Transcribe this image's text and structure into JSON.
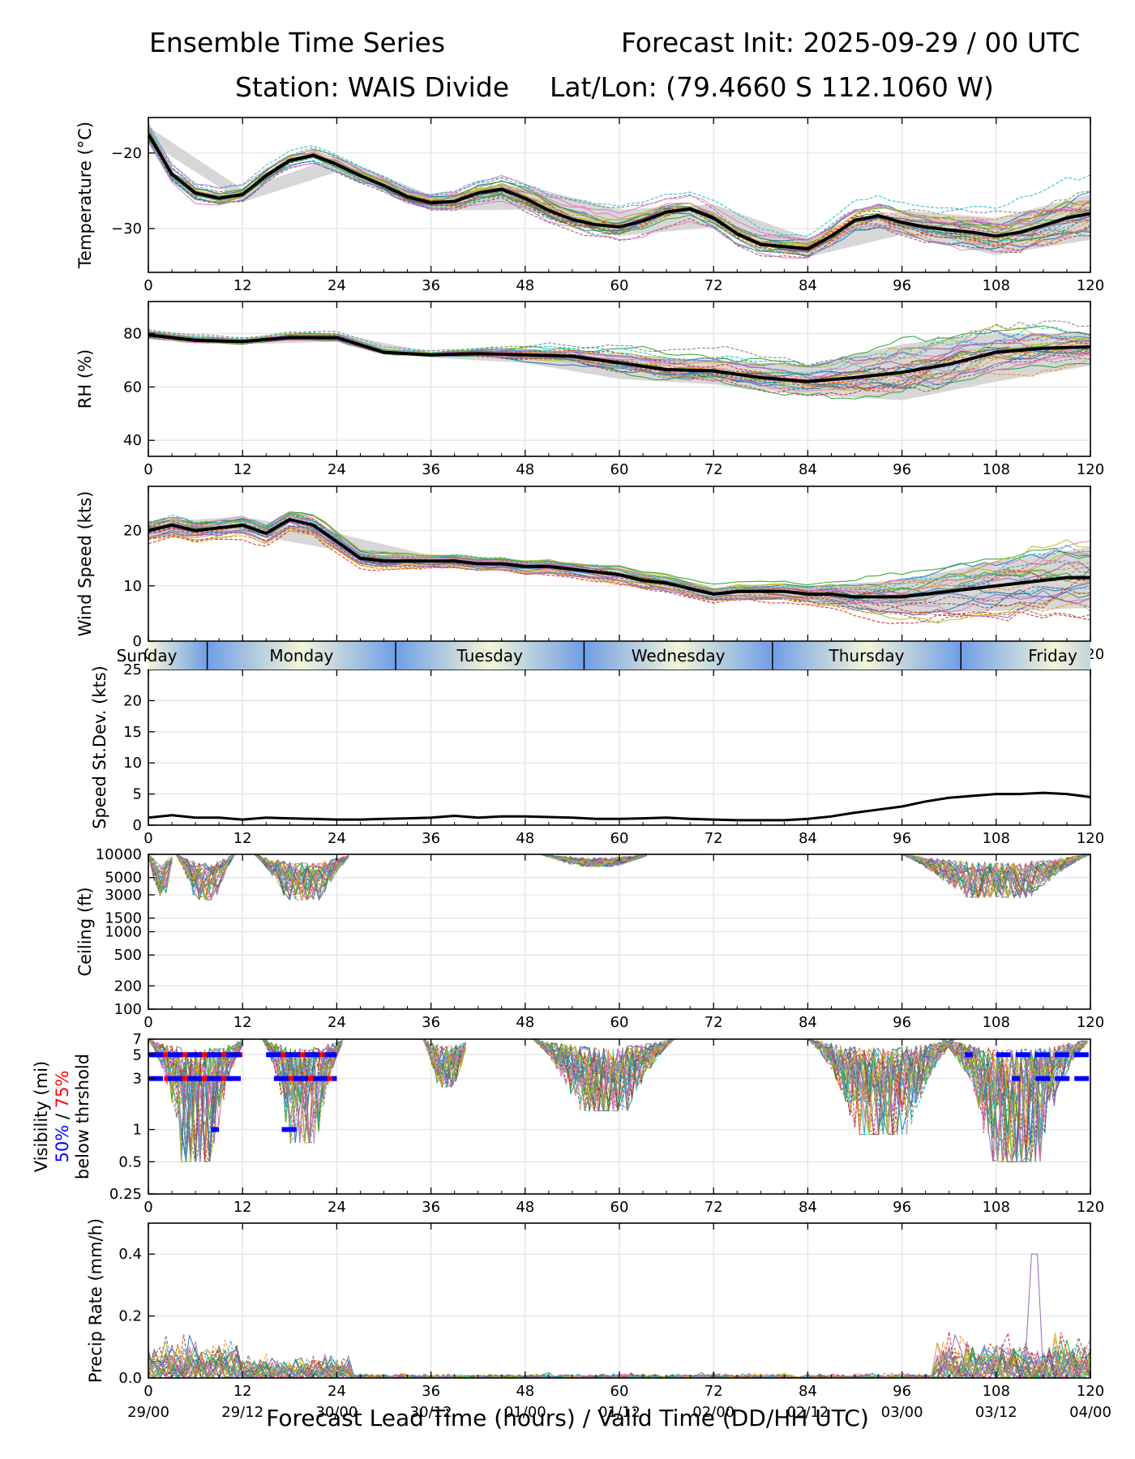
{
  "header": {
    "title_left": "Ensemble Time Series",
    "title_right": "Forecast Init: 2025-09-29 / 00 UTC",
    "subtitle_station": "Station: WAIS Divide",
    "subtitle_latlon": "Lat/Lon: (79.4660 S 112.1060 W)"
  },
  "x_axis_label": "Forecast Lead Time (hours) / Valid Time (DD/HH UTC)",
  "colors": {
    "mean": "#000000",
    "spread": "#d3d3d3",
    "pct50": "#0000ff",
    "pct75": "#ff0000",
    "members": [
      "#1f77b4",
      "#ff7f0e",
      "#2ca02c",
      "#d62728",
      "#9467bd",
      "#8c564b",
      "#e377c2",
      "#7f7f7f",
      "#bcbd22",
      "#17becf"
    ]
  },
  "chart_data": [
    {
      "id": "temperature",
      "type": "line",
      "ylabel": "Temperature (°C)",
      "xlim": [
        0,
        120
      ],
      "ylim": [
        -35.8,
        -15.3
      ],
      "yticks": [
        -20,
        -30
      ],
      "xticks": [
        0,
        12,
        24,
        36,
        48,
        60,
        72,
        84,
        96,
        108,
        120
      ],
      "series": [
        {
          "name": "ensemble mean",
          "x": [
            0,
            3,
            6,
            9,
            12,
            15,
            18,
            21,
            24,
            27,
            30,
            33,
            36,
            39,
            42,
            45,
            48,
            51,
            54,
            57,
            60,
            63,
            66,
            69,
            72,
            75,
            78,
            81,
            84,
            87,
            90,
            93,
            96,
            99,
            102,
            105,
            108,
            111,
            114,
            117,
            120
          ],
          "values": [
            -17.5,
            -22.8,
            -25.3,
            -26.0,
            -25.5,
            -23.0,
            -21.0,
            -20.3,
            -21.5,
            -23.0,
            -24.3,
            -25.8,
            -26.6,
            -26.4,
            -25.3,
            -24.8,
            -26.0,
            -27.6,
            -28.8,
            -29.5,
            -29.8,
            -29.0,
            -27.8,
            -27.4,
            -28.6,
            -30.7,
            -32.1,
            -32.4,
            -32.7,
            -31.0,
            -28.9,
            -28.3,
            -29.2,
            -29.8,
            -30.2,
            -30.5,
            -31.0,
            -30.5,
            -29.6,
            -28.6,
            -28.0
          ]
        }
      ],
      "spread": {
        "x": [
          0,
          12,
          24,
          36,
          48,
          60,
          72,
          84,
          96,
          108,
          120
        ],
        "lower": [
          -18.5,
          -26.5,
          -22.5,
          -27.6,
          -27.5,
          -31.0,
          -29.8,
          -33.8,
          -30.8,
          -33.5,
          -31.5
        ],
        "upper": [
          -16.5,
          -24.8,
          -20.5,
          -25.6,
          -24.3,
          -27.5,
          -26.8,
          -31.2,
          -27.6,
          -28.6,
          -25.5
        ]
      },
      "member_count": 30
    },
    {
      "id": "rh",
      "type": "line",
      "ylabel": "RH (%)",
      "xlim": [
        0,
        120
      ],
      "ylim": [
        34,
        92
      ],
      "yticks": [
        40,
        60,
        80
      ],
      "xticks": [
        0,
        12,
        24,
        36,
        48,
        60,
        72,
        84,
        96,
        108,
        120
      ],
      "series": [
        {
          "name": "ensemble mean",
          "x": [
            0,
            6,
            12,
            18,
            24,
            30,
            36,
            42,
            48,
            54,
            60,
            66,
            72,
            78,
            84,
            90,
            96,
            102,
            108,
            114,
            120
          ],
          "values": [
            79.5,
            77.5,
            77.0,
            78.5,
            78.5,
            73.0,
            72.0,
            72.5,
            72.0,
            71.5,
            69.0,
            66.5,
            66.0,
            63.5,
            62.0,
            63.5,
            65.5,
            68.5,
            73.0,
            74.5,
            75.0
          ]
        }
      ],
      "spread": {
        "x": [
          0,
          12,
          24,
          36,
          48,
          60,
          72,
          84,
          96,
          108,
          120
        ],
        "lower": [
          78.0,
          76.0,
          77.0,
          71.0,
          69.0,
          63.0,
          61.0,
          57.0,
          55.0,
          62.0,
          68.0
        ],
        "upper": [
          81.0,
          78.0,
          80.0,
          73.0,
          74.0,
          72.0,
          70.0,
          68.0,
          76.0,
          80.0,
          80.0
        ]
      },
      "member_count": 30
    },
    {
      "id": "wind_speed",
      "type": "line",
      "ylabel": "Wind Speed (kts)",
      "xlim": [
        0,
        120
      ],
      "ylim": [
        0,
        28
      ],
      "yticks": [
        0,
        10,
        20
      ],
      "xticks": [
        0,
        12,
        24,
        36,
        48,
        60,
        72,
        84,
        96,
        108,
        120
      ],
      "series": [
        {
          "name": "ensemble mean",
          "x": [
            0,
            3,
            6,
            9,
            12,
            15,
            18,
            21,
            24,
            27,
            30,
            33,
            36,
            39,
            42,
            45,
            48,
            51,
            54,
            57,
            60,
            63,
            66,
            69,
            72,
            75,
            78,
            81,
            84,
            87,
            90,
            93,
            96,
            99,
            102,
            105,
            108,
            111,
            114,
            117,
            120
          ],
          "values": [
            20.0,
            21.0,
            20.0,
            20.5,
            21.0,
            19.5,
            22.0,
            21.0,
            18.0,
            15.0,
            14.5,
            14.5,
            14.5,
            14.5,
            14.0,
            14.0,
            13.5,
            13.5,
            13.0,
            12.5,
            12.0,
            11.0,
            10.5,
            9.5,
            8.5,
            9.0,
            9.0,
            9.0,
            8.5,
            8.5,
            8.0,
            8.0,
            8.0,
            8.5,
            9.0,
            9.5,
            10.0,
            10.5,
            11.0,
            11.5,
            11.5
          ]
        }
      ],
      "spread": {
        "x": [
          0,
          12,
          24,
          36,
          48,
          60,
          72,
          84,
          96,
          108,
          120
        ],
        "lower": [
          18.5,
          19.5,
          16.5,
          13.5,
          12.5,
          11.0,
          7.5,
          7.5,
          5.0,
          5.5,
          6.0
        ],
        "upper": [
          21.5,
          22.5,
          19.5,
          15.5,
          14.5,
          13.5,
          9.5,
          10.0,
          11.0,
          14.5,
          17.0
        ]
      },
      "member_count": 30
    },
    {
      "id": "speed_stdev",
      "type": "line",
      "ylabel": "Speed St.Dev. (kts)",
      "xlim": [
        0,
        120
      ],
      "ylim": [
        0,
        25
      ],
      "yticks": [
        0,
        5,
        10,
        15,
        20,
        25
      ],
      "xticks": [
        0,
        12,
        24,
        36,
        48,
        60,
        72,
        84,
        96,
        108,
        120
      ],
      "series": [
        {
          "name": "speed standard deviation",
          "x": [
            0,
            3,
            6,
            9,
            12,
            15,
            18,
            21,
            24,
            27,
            30,
            33,
            36,
            39,
            42,
            45,
            48,
            51,
            54,
            57,
            60,
            63,
            66,
            69,
            72,
            75,
            78,
            81,
            84,
            87,
            90,
            93,
            96,
            99,
            102,
            105,
            108,
            111,
            114,
            117,
            120
          ],
          "values": [
            1.2,
            1.6,
            1.2,
            1.2,
            0.9,
            1.2,
            1.1,
            1.0,
            0.9,
            0.9,
            1.0,
            1.1,
            1.2,
            1.5,
            1.2,
            1.4,
            1.4,
            1.3,
            1.2,
            1.0,
            1.0,
            1.1,
            1.2,
            1.0,
            0.9,
            0.8,
            0.8,
            0.8,
            1.0,
            1.4,
            2.0,
            2.5,
            3.0,
            3.8,
            4.4,
            4.7,
            5.0,
            5.0,
            5.2,
            5.0,
            4.5
          ]
        }
      ],
      "member_count": 0
    },
    {
      "id": "ceiling",
      "type": "line",
      "ylabel": "Ceiling (ft)",
      "xlim": [
        0,
        120
      ],
      "yscale": "log",
      "ylim": [
        100,
        10000
      ],
      "yticks": [
        100,
        200,
        500,
        1000,
        1500,
        3000,
        5000,
        10000
      ],
      "ytick_labels": [
        "100",
        "200",
        "500",
        "1000",
        "1500",
        "3000",
        "5000",
        "10000"
      ],
      "xticks": [
        0,
        12,
        24,
        36,
        48,
        60,
        72,
        84,
        96,
        108,
        120
      ],
      "member_count": 30
    },
    {
      "id": "visibility",
      "type": "line",
      "ylabel": "Visibility (mi)",
      "ylabel_pct50": "50%",
      "ylabel_sep": " / ",
      "ylabel_pct75": "75%",
      "ylabel_2": "below thrshold",
      "xlim": [
        0,
        120
      ],
      "yscale": "log",
      "ylim": [
        0.25,
        7
      ],
      "yticks": [
        0.25,
        0.5,
        1,
        3,
        5,
        7
      ],
      "ytick_labels": [
        "0.25",
        "0.5",
        "1",
        "3",
        "5",
        "7"
      ],
      "xticks": [
        0,
        12,
        24,
        36,
        48,
        60,
        72,
        84,
        96,
        108,
        120
      ],
      "threshold_segments_50": [
        {
          "y": 5,
          "x0": 0,
          "x1": 12
        },
        {
          "y": 5,
          "x0": 15,
          "x1": 24
        },
        {
          "y": 3,
          "x0": 0,
          "x1": 12
        },
        {
          "y": 3,
          "x0": 16,
          "x1": 24
        },
        {
          "y": 1,
          "x0": 8,
          "x1": 9
        },
        {
          "y": 1,
          "x0": 17,
          "x1": 19.5
        },
        {
          "y": 5,
          "x0": 104,
          "x1": 105
        },
        {
          "y": 5,
          "x0": 108,
          "x1": 120
        },
        {
          "y": 3,
          "x0": 110,
          "x1": 111
        },
        {
          "y": 3,
          "x0": 113,
          "x1": 120
        }
      ],
      "threshold_segments_75": [
        {
          "y": 5,
          "x0": 0,
          "x1": 12
        },
        {
          "y": 5,
          "x0": 16,
          "x1": 24
        },
        {
          "y": 3,
          "x0": 2,
          "x1": 11
        },
        {
          "y": 3,
          "x0": 16,
          "x1": 24
        }
      ],
      "member_count": 30
    },
    {
      "id": "precip",
      "type": "line",
      "ylabel": "Precip Rate (mm/h)",
      "xlim": [
        0,
        120
      ],
      "ylim": [
        0,
        0.5
      ],
      "yticks": [
        0.0,
        0.2,
        0.4
      ],
      "ytick_labels": [
        "0.0",
        "0.2",
        "0.4"
      ],
      "xticks": [
        0,
        12,
        24,
        36,
        48,
        60,
        72,
        84,
        96,
        108,
        120
      ],
      "member_count": 30
    }
  ],
  "valid_time_labels": [
    "29/00",
    "29/12",
    "30/00",
    "30/12",
    "01/00",
    "01/12",
    "02/00",
    "02/12",
    "03/00",
    "03/12",
    "04/00"
  ],
  "day_bar": {
    "days": [
      {
        "name": "Sunday",
        "x0": -7.5,
        "x1": 7.5
      },
      {
        "name": "Monday",
        "x0": 7.5,
        "x1": 31.5
      },
      {
        "name": "Tuesday",
        "x0": 31.5,
        "x1": 55.5
      },
      {
        "name": "Wednesday",
        "x0": 55.5,
        "x1": 79.5
      },
      {
        "name": "Thursday",
        "x0": 79.5,
        "x1": 103.5
      },
      {
        "name": "Friday",
        "x0": 103.5,
        "x1": 127.5
      }
    ],
    "colors": {
      "night": "#6f9ee6",
      "day": "#f3f5d9"
    }
  }
}
